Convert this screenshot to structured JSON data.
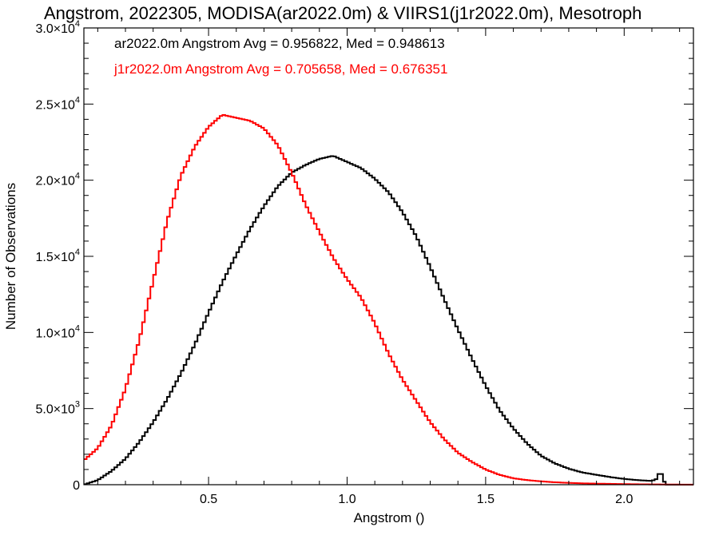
{
  "chart_data": {
    "type": "line",
    "title": "Angstrom, 2022305, MODISA(ar2022.0m) & VIIRS1(j1r2022.0m), Mesotroph",
    "xlabel": "Angstrom ()",
    "ylabel": "Number of Observations",
    "xlim": [
      0.05,
      2.25
    ],
    "ylim": [
      0,
      30000
    ],
    "grid": false,
    "legend_position": "top-left",
    "x_ticks": [
      {
        "value": 0.5,
        "label": "0.5"
      },
      {
        "value": 1.0,
        "label": "1.0"
      },
      {
        "value": 1.5,
        "label": "1.5"
      },
      {
        "value": 2.0,
        "label": "2.0"
      }
    ],
    "y_ticks": [
      {
        "value": 0,
        "mant": "0",
        "exp": ""
      },
      {
        "value": 5000,
        "mant": "5.0×10",
        "exp": "3"
      },
      {
        "value": 10000,
        "mant": "1.0×10",
        "exp": "4"
      },
      {
        "value": 15000,
        "mant": "1.5×10",
        "exp": "4"
      },
      {
        "value": 20000,
        "mant": "2.0×10",
        "exp": "4"
      },
      {
        "value": 25000,
        "mant": "2.5×10",
        "exp": "4"
      },
      {
        "value": 30000,
        "mant": "3.0×10",
        "exp": "4"
      }
    ],
    "series": [
      {
        "legend": "ar2022.0m Angstrom Avg = 0.956822, Med = 0.948613",
        "color": "#000000",
        "x": [
          0.05,
          0.1,
          0.15,
          0.2,
          0.25,
          0.3,
          0.35,
          0.4,
          0.45,
          0.5,
          0.55,
          0.6,
          0.65,
          0.7,
          0.75,
          0.8,
          0.85,
          0.9,
          0.95,
          1.0,
          1.05,
          1.1,
          1.15,
          1.2,
          1.25,
          1.3,
          1.35,
          1.4,
          1.45,
          1.5,
          1.55,
          1.6,
          1.65,
          1.7,
          1.75,
          1.8,
          1.85,
          1.9,
          1.95,
          2.0,
          2.05,
          2.1,
          2.12,
          2.13,
          2.14,
          2.15,
          2.16,
          2.25
        ],
        "y": [
          0,
          300,
          900,
          1700,
          2800,
          4100,
          5600,
          7300,
          9200,
          11300,
          13300,
          15100,
          16800,
          18300,
          19600,
          20500,
          21000,
          21400,
          21600,
          21200,
          20800,
          20100,
          19200,
          17900,
          16300,
          14300,
          12200,
          10200,
          8300,
          6500,
          4900,
          3700,
          2700,
          1900,
          1400,
          1050,
          800,
          650,
          500,
          380,
          300,
          250,
          400,
          1000,
          400,
          0,
          0,
          0
        ]
      },
      {
        "legend": "j1r2022.0m Angstrom Avg = 0.705658, Med = 0.676351",
        "color": "#ff0000",
        "x": [
          0.05,
          0.1,
          0.15,
          0.2,
          0.25,
          0.3,
          0.35,
          0.4,
          0.45,
          0.5,
          0.55,
          0.6,
          0.65,
          0.7,
          0.75,
          0.8,
          0.85,
          0.9,
          0.95,
          1.0,
          1.05,
          1.1,
          1.15,
          1.2,
          1.25,
          1.3,
          1.35,
          1.4,
          1.45,
          1.5,
          1.55,
          1.6,
          1.65,
          1.7,
          1.75,
          1.8,
          1.85,
          1.9,
          1.95,
          2.0,
          2.05,
          2.1,
          2.15,
          2.2,
          2.25
        ],
        "y": [
          1600,
          2400,
          3900,
          6300,
          9500,
          13400,
          17300,
          20300,
          22200,
          23500,
          24300,
          24100,
          23900,
          23400,
          22300,
          20500,
          18400,
          16600,
          14900,
          13500,
          12300,
          10600,
          8600,
          6900,
          5500,
          4100,
          3000,
          2100,
          1500,
          1000,
          650,
          420,
          300,
          220,
          160,
          120,
          90,
          70,
          55,
          40,
          30,
          20,
          15,
          10,
          5
        ]
      }
    ]
  }
}
